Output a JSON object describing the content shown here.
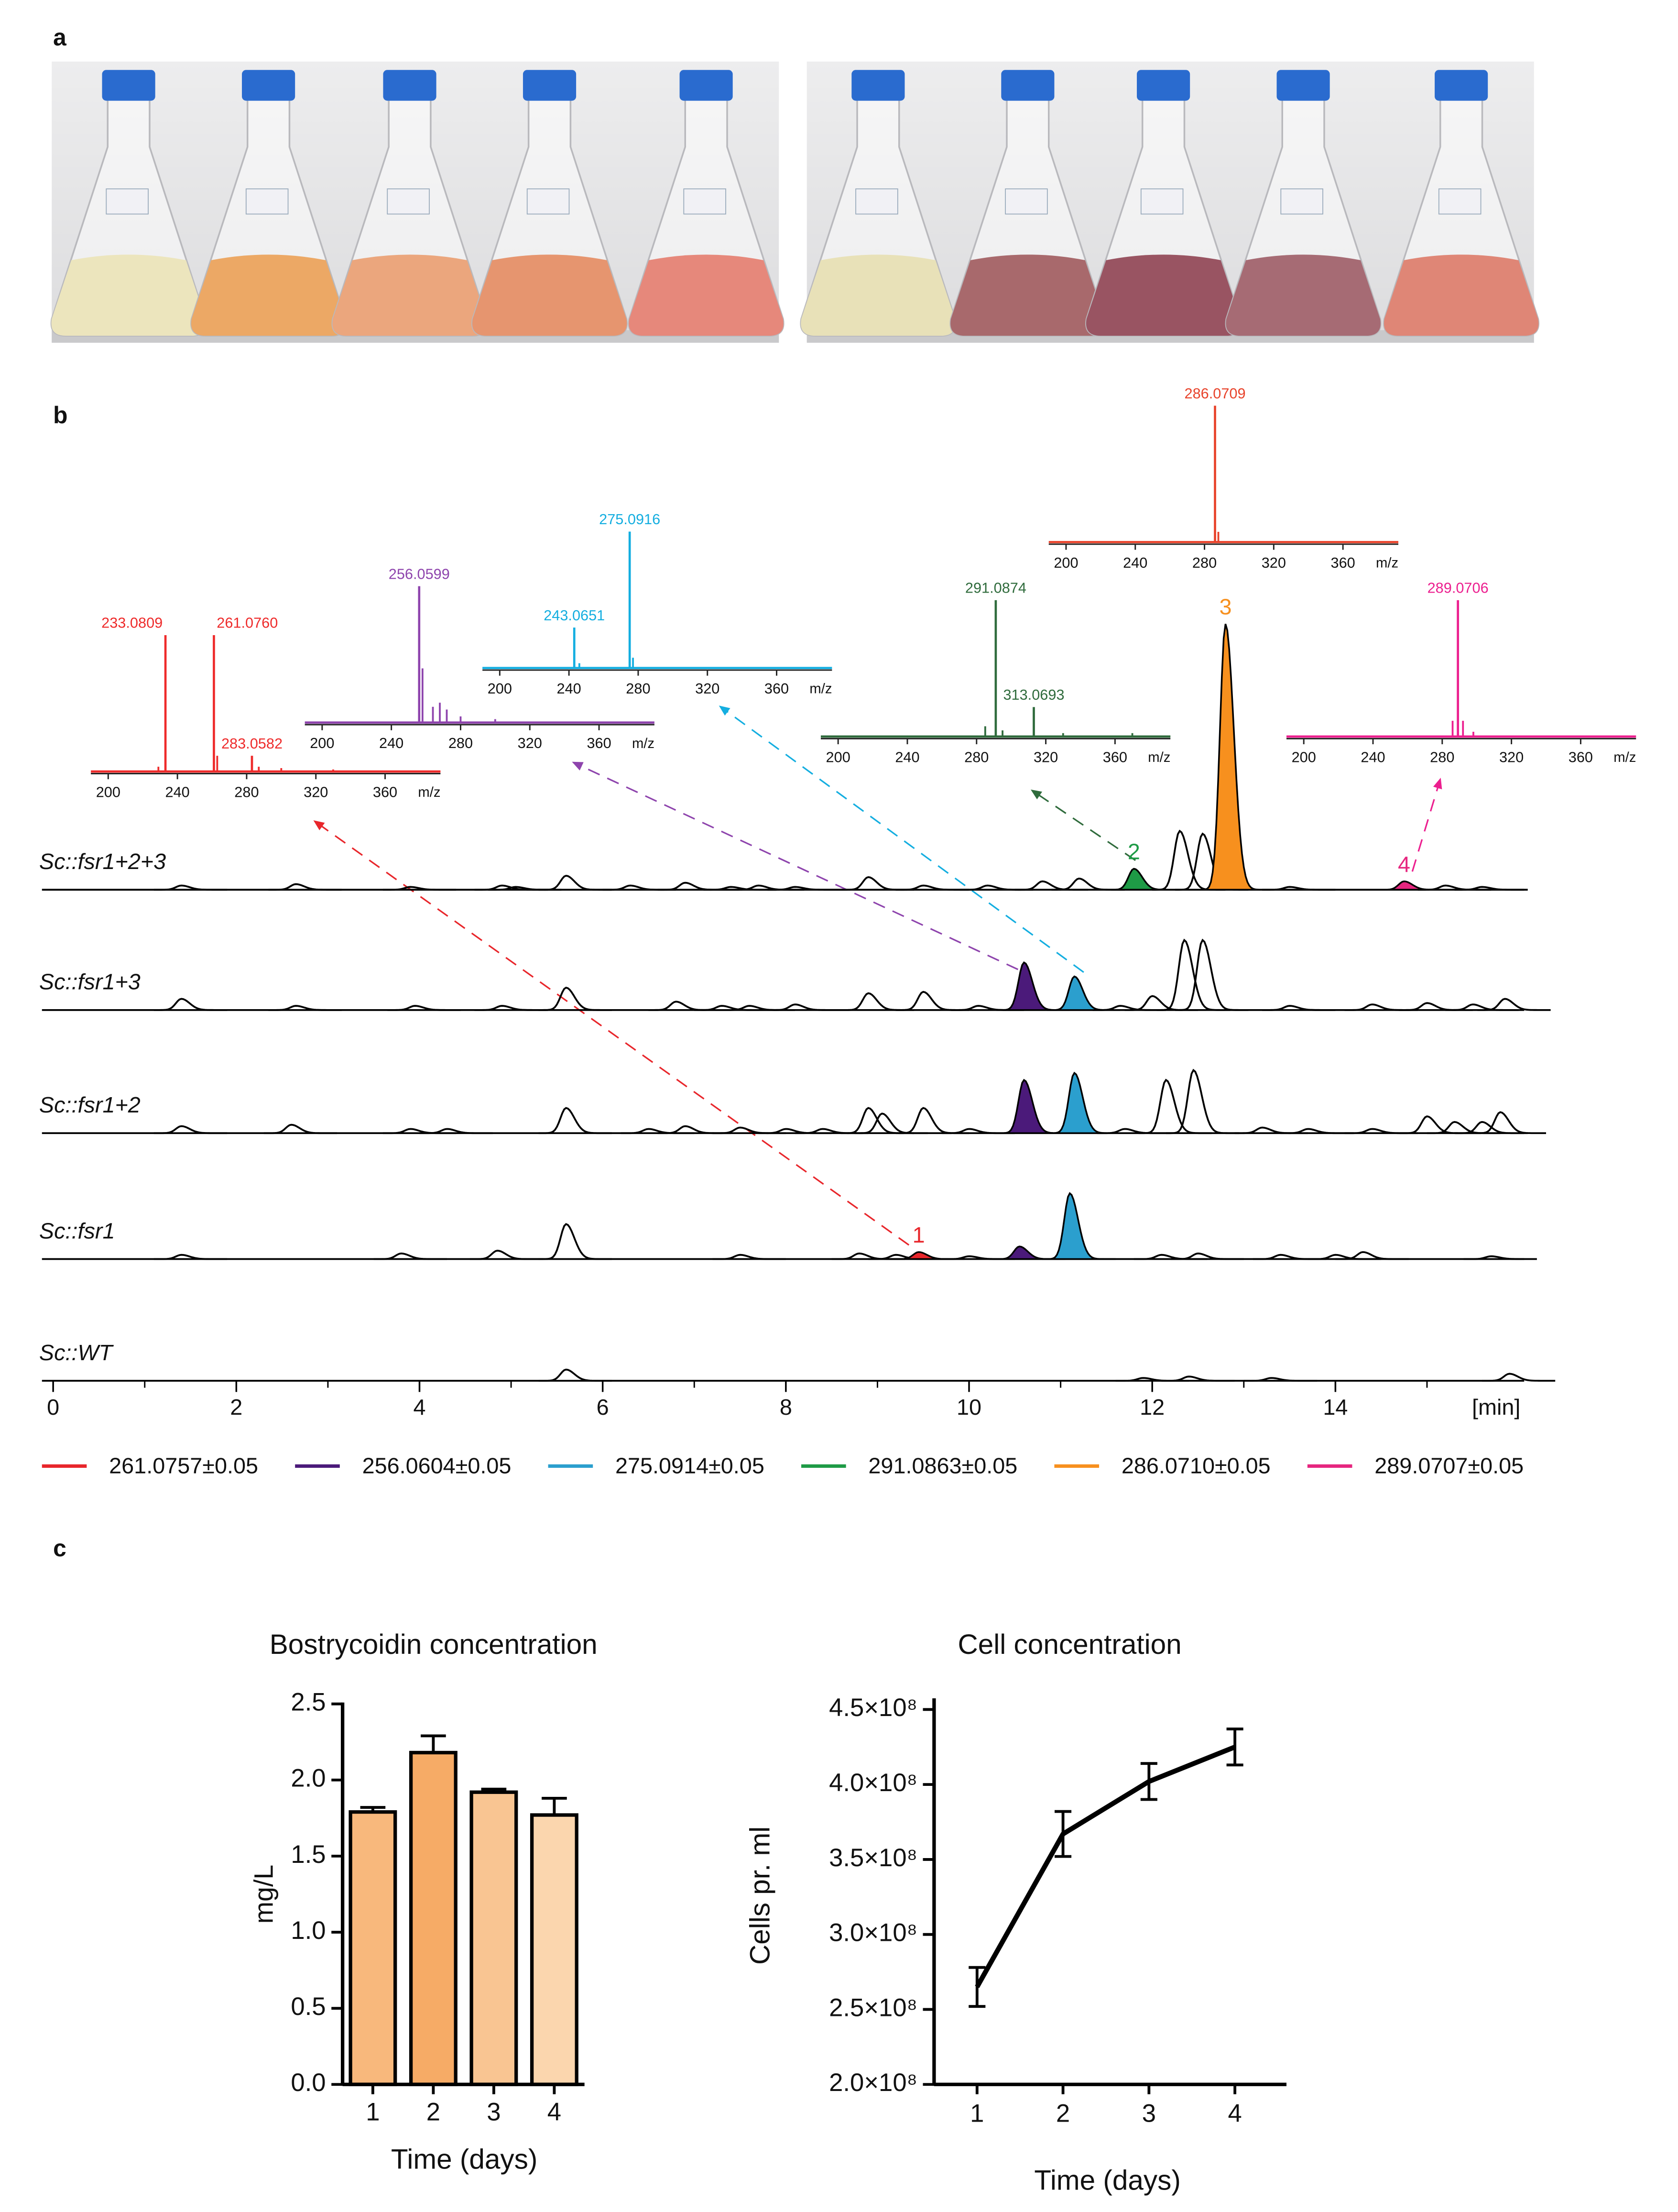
{
  "figure": {
    "panel_labels": [
      "a",
      "b",
      "c"
    ]
  },
  "chart_data": [
    {
      "type": "chromatogram",
      "xlabel": "[min]",
      "xlim": [
        0,
        16
      ],
      "xticks": [
        0,
        2,
        4,
        6,
        8,
        10,
        12,
        14
      ],
      "minor_xticks": [
        1,
        3,
        5,
        7,
        9,
        11,
        13,
        15
      ],
      "traces": [
        {
          "name": "Sc::fsr1+2+3",
          "x": [
            1.4,
            2.65,
            3.9,
            4.9,
            5.05,
            5.6,
            6.3,
            6.9,
            7.4,
            7.7,
            8.1,
            8.9,
            9.5,
            10.2,
            10.8,
            11.2,
            12.3,
            12.55,
            13.5,
            15.2,
            15.6
          ],
          "values": [
            3,
            4,
            2,
            3,
            2,
            10,
            3,
            5,
            2,
            3,
            2,
            9,
            3,
            3,
            6,
            8,
            42,
            40,
            2,
            3,
            2
          ]
        },
        {
          "name": "Sc::fsr1+3",
          "x": [
            1.4,
            2.65,
            3.95,
            4.9,
            5.6,
            6.8,
            7.3,
            7.6,
            8.1,
            8.9,
            9.5,
            10.1,
            11.65,
            12.0,
            12.35,
            12.55,
            13.5,
            14.4,
            15.0,
            15.5,
            15.85
          ],
          "values": [
            8,
            3,
            3,
            3,
            16,
            6,
            3,
            3,
            4,
            12,
            13,
            3,
            3,
            10,
            50,
            50,
            3,
            4,
            5,
            4,
            8
          ]
        },
        {
          "name": "Sc::fsr1+2",
          "x": [
            1.4,
            2.6,
            3.9,
            4.3,
            5.6,
            6.5,
            6.9,
            7.5,
            8.0,
            8.4,
            8.9,
            9.05,
            9.5,
            10.0,
            11.7,
            12.15,
            12.45,
            13.2,
            13.7,
            14.4,
            15.0,
            15.3,
            15.6,
            15.8
          ],
          "values": [
            5,
            6,
            3,
            3,
            18,
            3,
            5,
            4,
            3,
            3,
            18,
            14,
            18,
            3,
            3,
            38,
            45,
            4,
            3,
            3,
            12,
            8,
            8,
            15
          ]
        },
        {
          "name": "Sc::fsr1",
          "x": [
            1.4,
            3.8,
            4.85,
            5.6,
            7.5,
            8.8,
            9.2,
            10.0,
            12.1,
            12.5,
            13.4,
            14.0,
            14.3,
            15.7
          ],
          "values": [
            3,
            4,
            6,
            25,
            3,
            4,
            3,
            2,
            3,
            4,
            3,
            3,
            5,
            2
          ]
        },
        {
          "name": "Sc::WT",
          "x": [
            5.6,
            11.9,
            12.4,
            13.3,
            15.9
          ],
          "values": [
            8,
            2,
            3,
            2,
            5
          ]
        }
      ],
      "series": [
        {
          "name": "261.0757±0.05",
          "color": "#e8262b",
          "peak_label": "1",
          "x": [
            null,
            null,
            null,
            9.45,
            null
          ],
          "values": [
            null,
            null,
            null,
            5,
            null
          ]
        },
        {
          "name": "256.0604±0.05",
          "color": "#4b1a7a",
          "x": [
            null,
            10.6,
            10.6,
            10.55,
            null
          ],
          "values": [
            null,
            34,
            38,
            9,
            null
          ]
        },
        {
          "name": "275.0914±0.05",
          "color": "#2b9fce",
          "x": [
            null,
            11.15,
            11.15,
            11.1,
            null
          ],
          "values": [
            null,
            24,
            43,
            47,
            null
          ]
        },
        {
          "name": "291.0863±0.05",
          "color": "#1e9b46",
          "peak_label": "2",
          "x": [
            11.8,
            null,
            null,
            null,
            null
          ],
          "values": [
            15,
            null,
            null,
            null,
            null
          ]
        },
        {
          "name": "286.0710±0.05",
          "color": "#f7901e",
          "peak_label": "3",
          "x": [
            12.8,
            null,
            null,
            null,
            null
          ],
          "values": [
            190,
            null,
            null,
            null,
            null
          ]
        },
        {
          "name": "289.0707±0.05",
          "color": "#e6267f",
          "peak_label": "4",
          "x": [
            14.75,
            null,
            null,
            null,
            null
          ],
          "values": [
            6,
            null,
            null,
            null,
            null
          ]
        }
      ]
    },
    {
      "type": "spectrum",
      "color": "#ee2b2b",
      "xlabel": "m/z",
      "xlim": [
        190,
        392
      ],
      "xticks": [
        200,
        240,
        280,
        320,
        360
      ],
      "peaks": {
        "x": [
          233.0809,
          {
            "value": 261.076,
            "label": "261.0760"
          },
          283.0582
        ],
        "values": [
          100,
          100,
          12
        ]
      },
      "minor_peaks": {
        "x": [
          229,
          263,
          287,
          300,
          330
        ],
        "values": [
          4,
          12,
          4,
          3,
          2
        ]
      }
    },
    {
      "type": "spectrum",
      "color": "#8e44ad",
      "xlabel": "m/z",
      "xlim": [
        190,
        392
      ],
      "xticks": [
        200,
        240,
        280,
        320,
        360
      ],
      "peaks": {
        "x": [
          256.0599
        ],
        "values": [
          100
        ]
      },
      "minor_peaks": {
        "x": [
          258,
          264,
          268,
          272,
          280,
          300
        ],
        "values": [
          40,
          12,
          15,
          10,
          5,
          3
        ]
      }
    },
    {
      "type": "spectrum",
      "color": "#14aee0",
      "xlabel": "m/z",
      "xlim": [
        190,
        392
      ],
      "xticks": [
        200,
        240,
        280,
        320,
        360
      ],
      "peaks": {
        "x": [
          243.0651,
          275.0916
        ],
        "values": [
          30,
          100
        ]
      },
      "minor_peaks": {
        "x": [
          246,
          277
        ],
        "values": [
          4,
          8
        ]
      }
    },
    {
      "type": "spectrum",
      "color": "#2f6b3c",
      "xlabel": "m/z",
      "xlim": [
        190,
        392
      ],
      "xticks": [
        200,
        240,
        280,
        320,
        360
      ],
      "peaks": {
        "x": [
          291.0874,
          313.0693
        ],
        "values": [
          100,
          22
        ]
      },
      "minor_peaks": {
        "x": [
          285,
          295,
          330,
          370
        ],
        "values": [
          8,
          5,
          3,
          3
        ]
      }
    },
    {
      "type": "spectrum",
      "color": "#e8432b",
      "xlabel": "m/z",
      "xlim": [
        190,
        392
      ],
      "xticks": [
        200,
        240,
        280,
        320,
        360
      ],
      "peaks": {
        "x": [
          286.0709
        ],
        "values": [
          100
        ]
      },
      "minor_peaks": {
        "x": [
          288
        ],
        "values": [
          8
        ]
      }
    },
    {
      "type": "spectrum",
      "color": "#ec1f8f",
      "xlabel": "m/z",
      "xlim": [
        190,
        392
      ],
      "xticks": [
        200,
        240,
        280,
        320,
        360
      ],
      "peaks": {
        "x": [
          289.0706
        ],
        "values": [
          100
        ]
      },
      "minor_peaks": {
        "x": [
          286,
          292,
          298
        ],
        "values": [
          12,
          12,
          4
        ]
      }
    },
    {
      "type": "bar",
      "title": "Bostrycoidin concentration",
      "xlabel": "Time (days)",
      "ylabel": "mg/L",
      "categories": [
        "1",
        "2",
        "3",
        "4"
      ],
      "values": [
        1.79,
        2.18,
        1.92,
        1.77
      ],
      "errors": [
        0.03,
        0.11,
        0.02,
        0.11
      ],
      "colors": [
        "#f8b87c",
        "#f6ab66",
        "#f9c592",
        "#fbd6ae"
      ],
      "ylim": [
        0,
        2.5
      ],
      "yticks": [
        {
          "value": 0,
          "label": "0.0"
        },
        0.5,
        {
          "value": 1,
          "label": "1.0"
        },
        1.5,
        {
          "value": 2,
          "label": "2.0"
        },
        2.5
      ]
    },
    {
      "type": "line",
      "title": "Cell concentration",
      "xlabel": "Time (days)",
      "ylabel": "Cells pr. ml",
      "color": "#000000",
      "x": [
        1,
        2,
        3,
        4
      ],
      "values": [
        265000000,
        367000000,
        402000000,
        425000000
      ],
      "errors": [
        13000000,
        15000000,
        12000000,
        12000000
      ],
      "xlim": [
        0.5,
        4.6
      ],
      "xticks": [
        1,
        2,
        3,
        4
      ],
      "ylim": [
        200000000,
        450000000
      ],
      "yticks": [
        {
          "value": 200000000,
          "label": "2.0×10⁸"
        },
        {
          "value": 250000000,
          "label": "2.5×10⁸"
        },
        {
          "value": 300000000,
          "label": "3.0×10⁸"
        },
        {
          "value": 350000000,
          "label": "3.5×10⁸"
        },
        {
          "value": 400000000,
          "label": "4.0×10⁸"
        },
        {
          "value": 450000000,
          "label": "4.5×10⁸"
        }
      ]
    }
  ]
}
